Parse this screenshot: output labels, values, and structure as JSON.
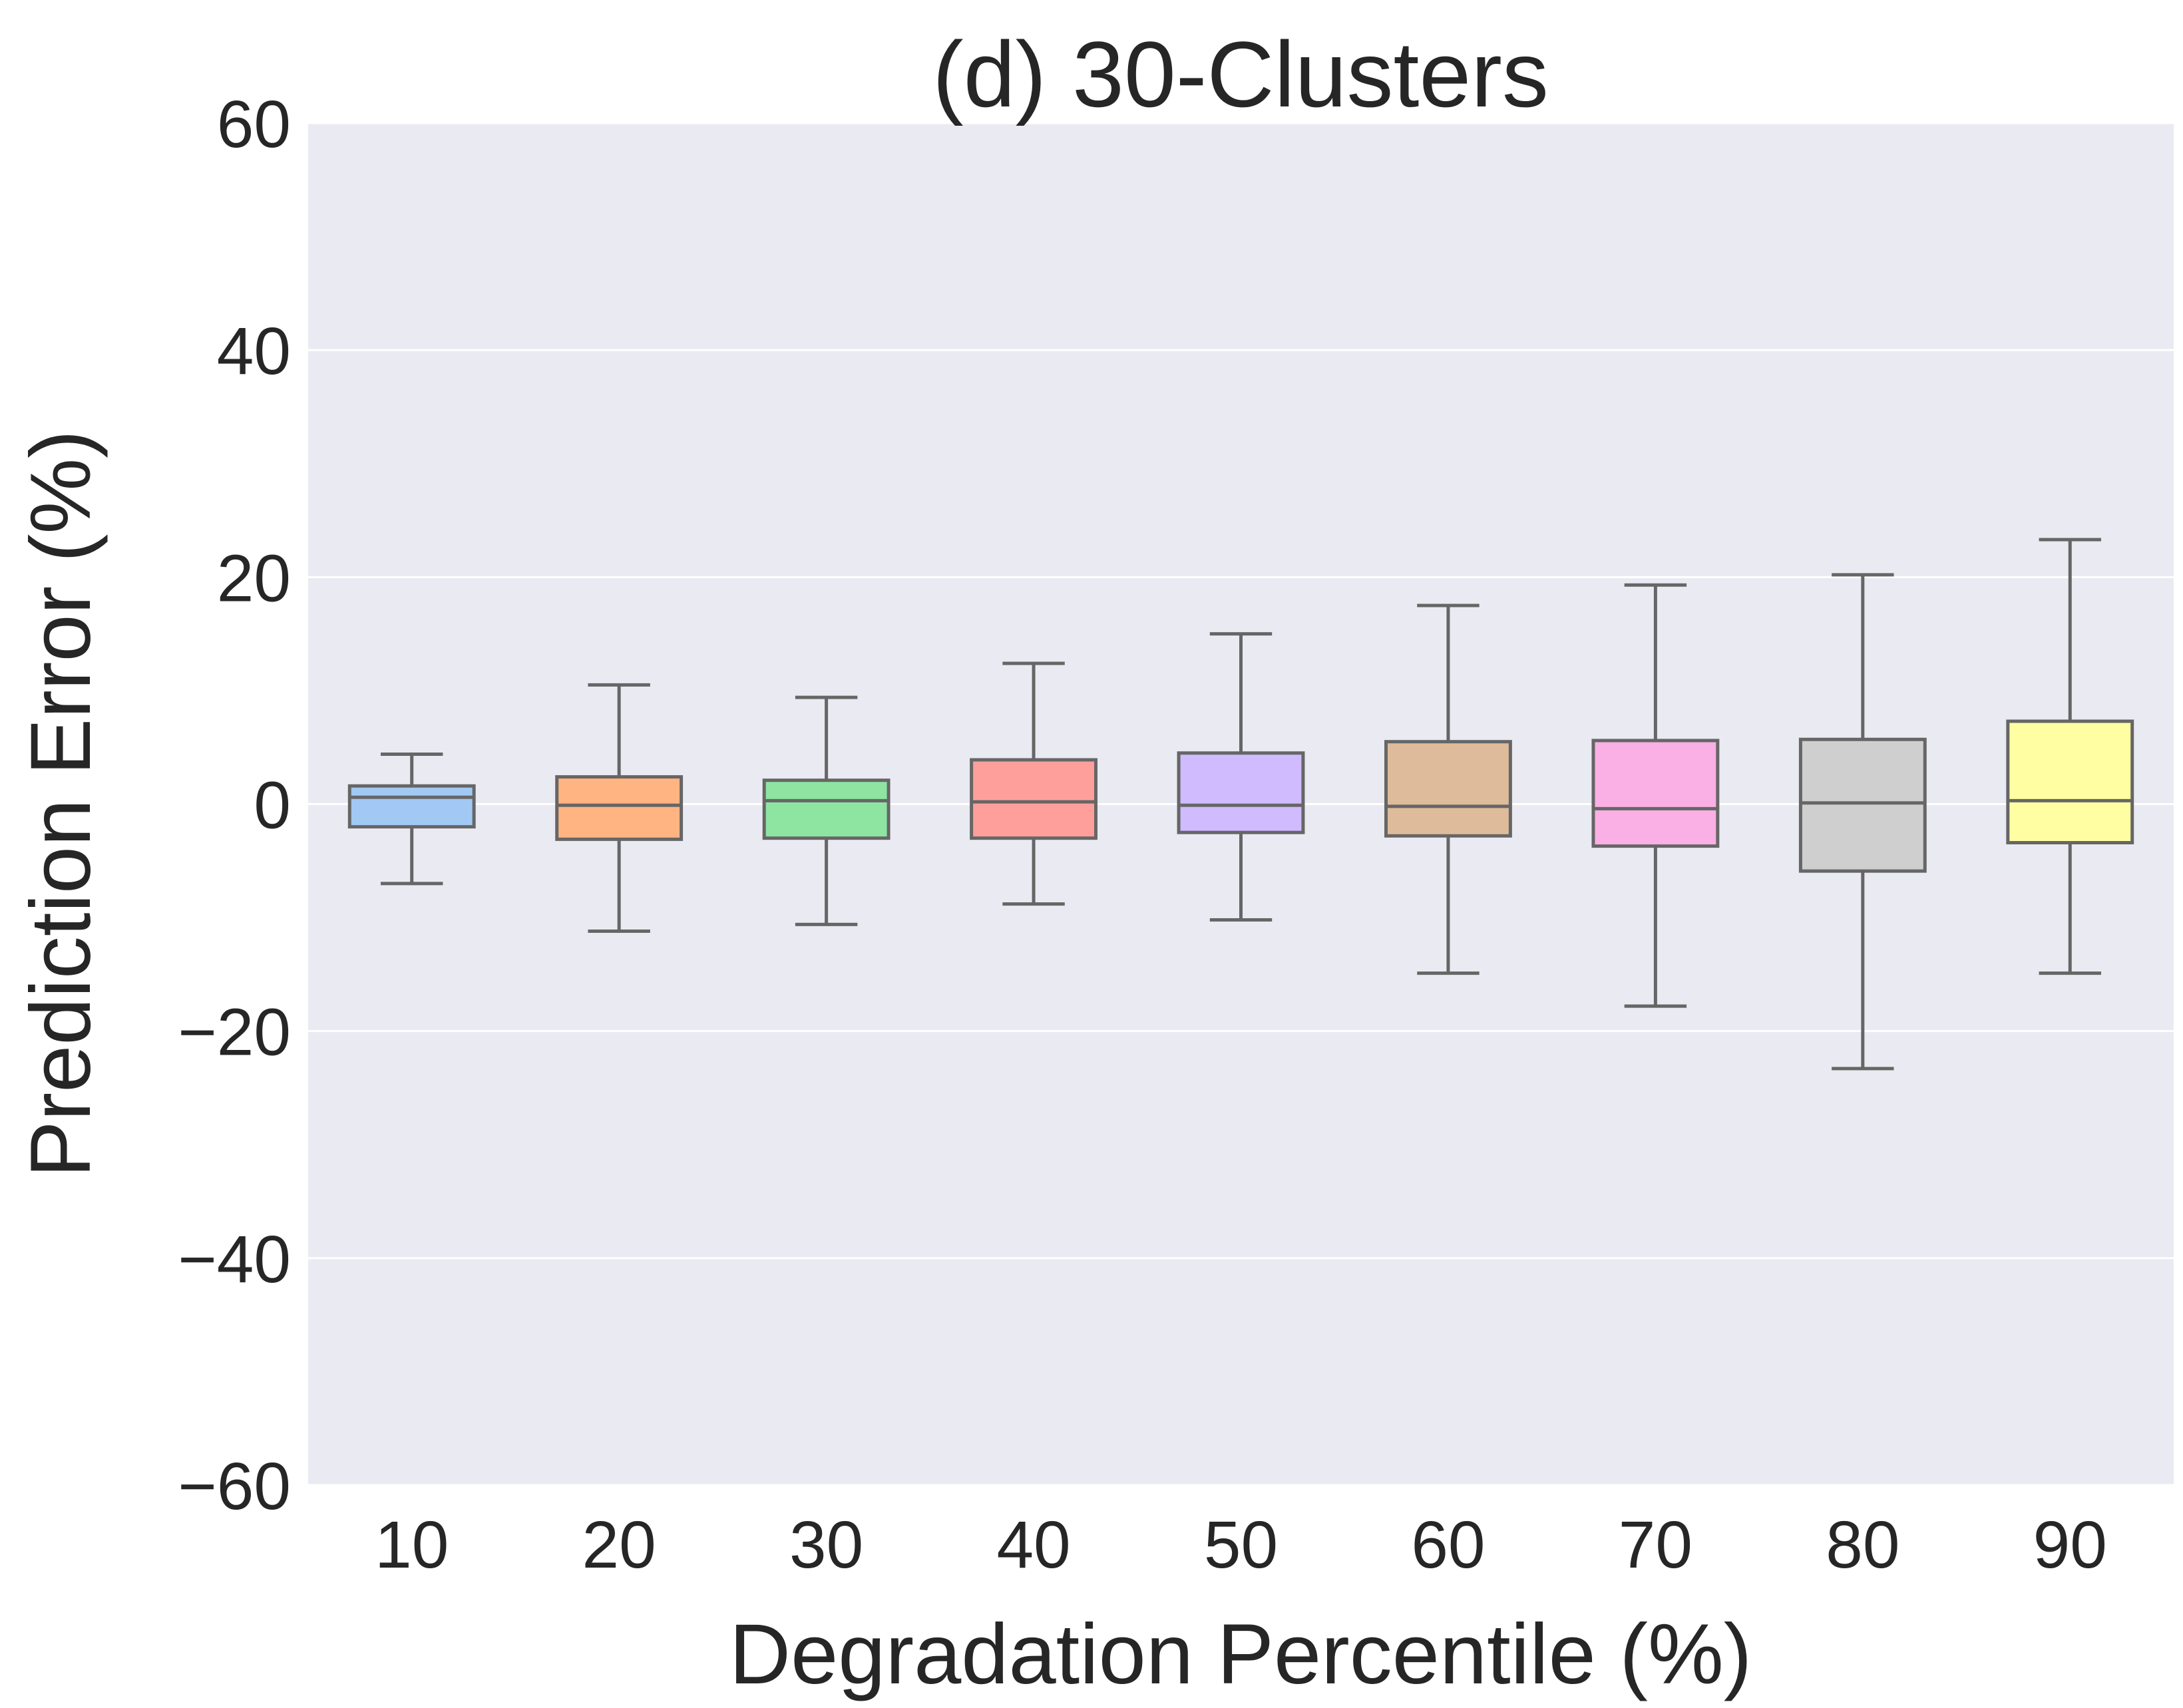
{
  "chart_data": {
    "type": "box",
    "title": "(d) 30-Clusters",
    "xlabel": "Degradation Percentile (%)",
    "ylabel": "Prediction Error (%)",
    "ylim": [
      -60,
      60
    ],
    "yticks": [
      -60,
      -40,
      -20,
      0,
      20,
      40,
      60
    ],
    "ytick_labels": [
      "−60",
      "−40",
      "−20",
      "0",
      "20",
      "40",
      "60"
    ],
    "grid": true,
    "categories": [
      "10",
      "20",
      "30",
      "40",
      "50",
      "60",
      "70",
      "80",
      "90"
    ],
    "boxes": [
      {
        "whisker_low": -7.0,
        "q1": -2.0,
        "median": 0.6,
        "q3": 1.6,
        "whisker_high": 4.4,
        "color": "#a1c9f4"
      },
      {
        "whisker_low": -11.2,
        "q1": -3.1,
        "median": -0.1,
        "q3": 2.4,
        "whisker_high": 10.5,
        "color": "#ffb482"
      },
      {
        "whisker_low": -10.6,
        "q1": -3.0,
        "median": 0.3,
        "q3": 2.1,
        "whisker_high": 9.4,
        "color": "#8de5a1"
      },
      {
        "whisker_low": -8.8,
        "q1": -3.0,
        "median": 0.2,
        "q3": 3.9,
        "whisker_high": 12.4,
        "color": "#ff9f9b"
      },
      {
        "whisker_low": -10.2,
        "q1": -2.5,
        "median": -0.1,
        "q3": 4.5,
        "whisker_high": 15.0,
        "color": "#d0bbff"
      },
      {
        "whisker_low": -14.9,
        "q1": -2.8,
        "median": -0.2,
        "q3": 5.5,
        "whisker_high": 17.5,
        "color": "#debb9b"
      },
      {
        "whisker_low": -17.8,
        "q1": -3.7,
        "median": -0.4,
        "q3": 5.6,
        "whisker_high": 19.3,
        "color": "#fab0e4"
      },
      {
        "whisker_low": -23.3,
        "q1": -5.9,
        "median": 0.1,
        "q3": 5.7,
        "whisker_high": 20.2,
        "color": "#cfcfcf"
      },
      {
        "whisker_low": -14.9,
        "q1": -3.4,
        "median": 0.3,
        "q3": 7.3,
        "whisker_high": 23.3,
        "color": "#fffea3"
      }
    ]
  }
}
